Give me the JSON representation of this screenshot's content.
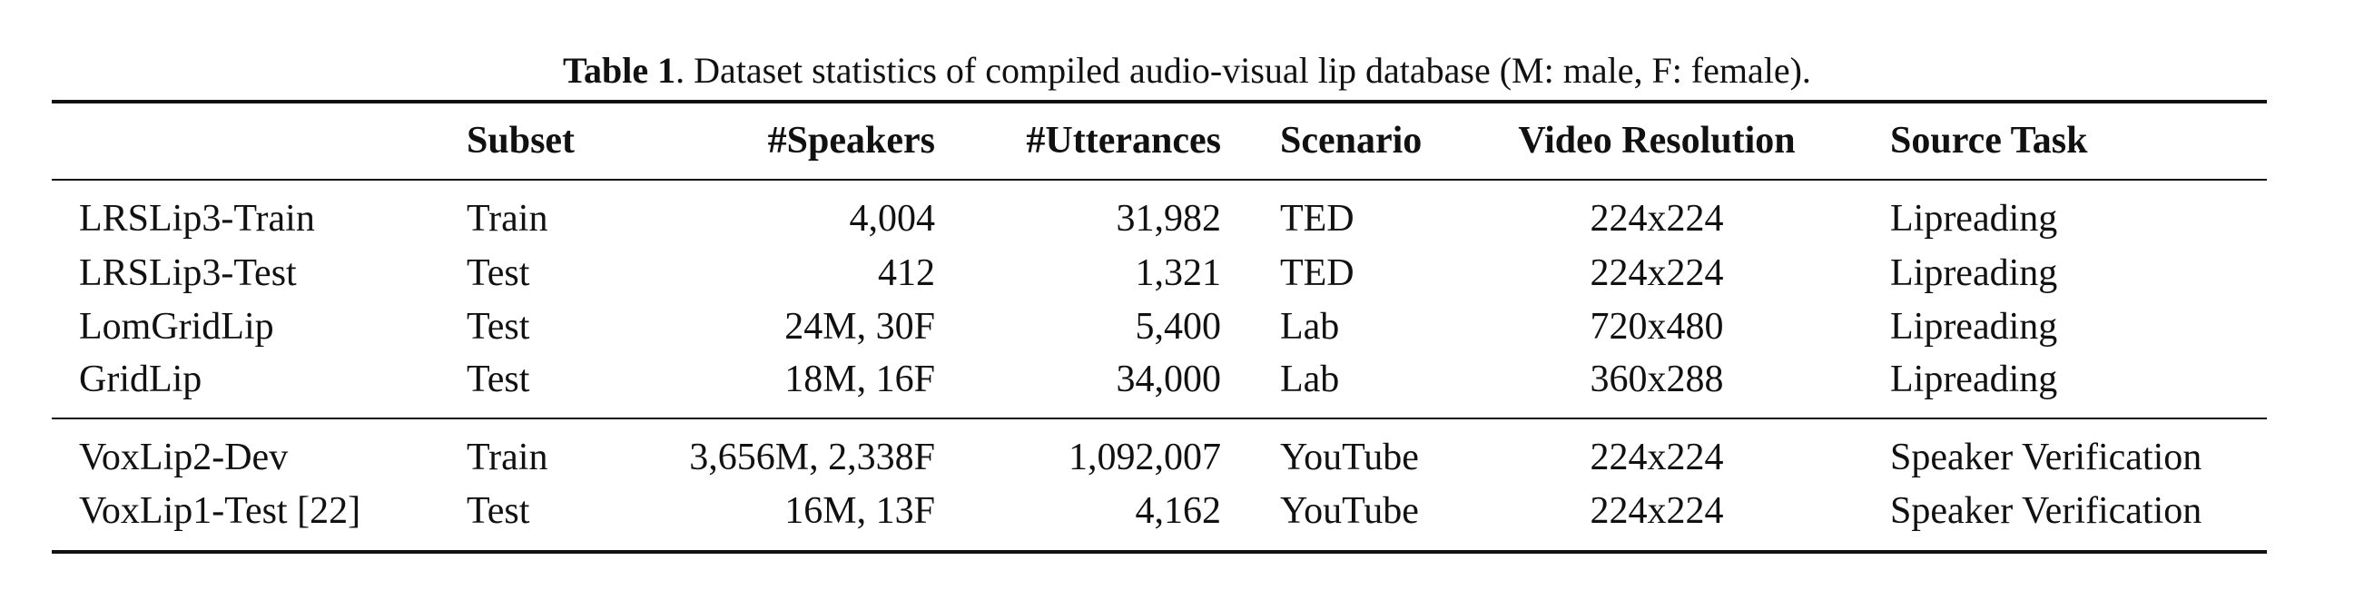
{
  "caption": {
    "lead": "Table 1",
    "text": ". Dataset statistics of compiled audio-visual lip database (M: male, F: female)."
  },
  "columns": {
    "name": "",
    "subset": "Subset",
    "speakers": "#Speakers",
    "utterances": "#Utterances",
    "scenario": "Scenario",
    "resolution": "Video Resolution",
    "task": "Source Task"
  },
  "rows": [
    {
      "name": "LRSLip3-Train",
      "subset": "Train",
      "speakers": "4,004",
      "utterances": "31,982",
      "scenario": "TED",
      "resolution": "224x224",
      "task": "Lipreading"
    },
    {
      "name": "LRSLip3-Test",
      "subset": "Test",
      "speakers": "412",
      "utterances": "1,321",
      "scenario": "TED",
      "resolution": "224x224",
      "task": "Lipreading"
    },
    {
      "name": "LomGridLip",
      "subset": "Test",
      "speakers": "24M, 30F",
      "utterances": "5,400",
      "scenario": "Lab",
      "resolution": "720x480",
      "task": "Lipreading"
    },
    {
      "name": "GridLip",
      "subset": "Test",
      "speakers": "18M, 16F",
      "utterances": "34,000",
      "scenario": "Lab",
      "resolution": "360x288",
      "task": "Lipreading"
    },
    {
      "name": "VoxLip2-Dev",
      "subset": "Train",
      "speakers": "3,656M, 2,338F",
      "utterances": "1,092,007",
      "scenario": "YouTube",
      "resolution": "224x224",
      "task": "Speaker Verification"
    },
    {
      "name": "VoxLip1-Test [22]",
      "subset": "Test",
      "speakers": "16M, 13F",
      "utterances": "4,162",
      "scenario": "YouTube",
      "resolution": "224x224",
      "task": "Speaker Verification"
    }
  ]
}
